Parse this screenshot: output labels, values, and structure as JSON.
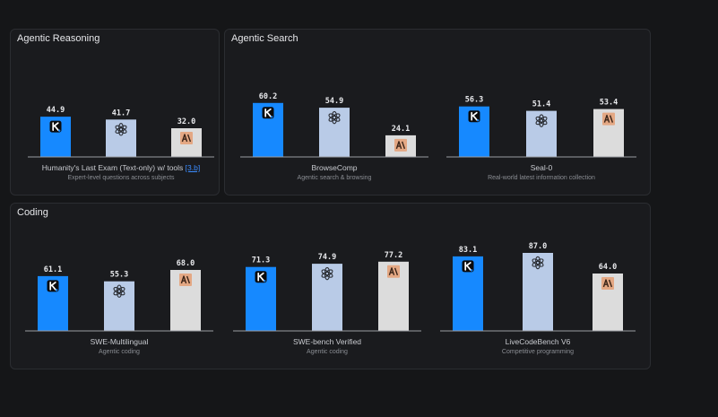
{
  "colors": {
    "kimi": "#1689ff",
    "openai": "#b9cbe7",
    "anthropic": "#dcdcdc",
    "axis": "#9a9ca2",
    "label": "#e8e9ec",
    "anthropic_badge": "#e4a884",
    "anthropic_badge_text": "#3a2418"
  },
  "models": [
    {
      "name": "Kimi",
      "icon": "kimi-k-icon"
    },
    {
      "name": "OpenAI",
      "icon": "openai-icon"
    },
    {
      "name": "Anthropic",
      "icon": "anthropic-icon"
    }
  ],
  "panels": {
    "reasoning": {
      "title": "Agentic Reasoning"
    },
    "search": {
      "title": "Agentic Search"
    },
    "coding": {
      "title": "Coding"
    }
  },
  "chart_data": [
    {
      "type": "bar",
      "title": "Humanity's Last Exam (Text-only) w/ tools",
      "title_link": "[3.b]",
      "subtitle": "Expert-level questions across subjects",
      "categories": [
        "Kimi",
        "OpenAI",
        "Anthropic"
      ],
      "values": [
        44.9,
        41.7,
        32.0
      ],
      "labels": [
        "44.9",
        "41.7",
        "32.0"
      ],
      "ylim": [
        0,
        100
      ]
    },
    {
      "type": "bar",
      "title": "BrowseComp",
      "subtitle": "Agentic search & browsing",
      "categories": [
        "Kimi",
        "OpenAI",
        "Anthropic"
      ],
      "values": [
        60.2,
        54.9,
        24.1
      ],
      "labels": [
        "60.2",
        "54.9",
        "24.1"
      ],
      "ylim": [
        0,
        100
      ]
    },
    {
      "type": "bar",
      "title": "Seal-0",
      "subtitle": "Real-world latest information collection",
      "categories": [
        "Kimi",
        "OpenAI",
        "Anthropic"
      ],
      "values": [
        56.3,
        51.4,
        53.4
      ],
      "labels": [
        "56.3",
        "51.4",
        "53.4"
      ],
      "ylim": [
        0,
        100
      ]
    },
    {
      "type": "bar",
      "title": "SWE-Multilingual",
      "subtitle": "Agentic coding",
      "categories": [
        "Kimi",
        "OpenAI",
        "Anthropic"
      ],
      "values": [
        61.1,
        55.3,
        68.0
      ],
      "labels": [
        "61.1",
        "55.3",
        "68.0"
      ],
      "ylim": [
        0,
        100
      ]
    },
    {
      "type": "bar",
      "title": "SWE-bench Verified",
      "subtitle": "Agentic coding",
      "categories": [
        "Kimi",
        "OpenAI",
        "Anthropic"
      ],
      "values": [
        71.3,
        74.9,
        77.2
      ],
      "labels": [
        "71.3",
        "74.9",
        "77.2"
      ],
      "ylim": [
        0,
        100
      ]
    },
    {
      "type": "bar",
      "title": "LiveCodeBench V6",
      "subtitle": "Competitive programming",
      "categories": [
        "Kimi",
        "OpenAI",
        "Anthropic"
      ],
      "values": [
        83.1,
        87.0,
        64.0
      ],
      "labels": [
        "83.1",
        "87.0",
        "64.0"
      ],
      "ylim": [
        0,
        100
      ]
    }
  ]
}
